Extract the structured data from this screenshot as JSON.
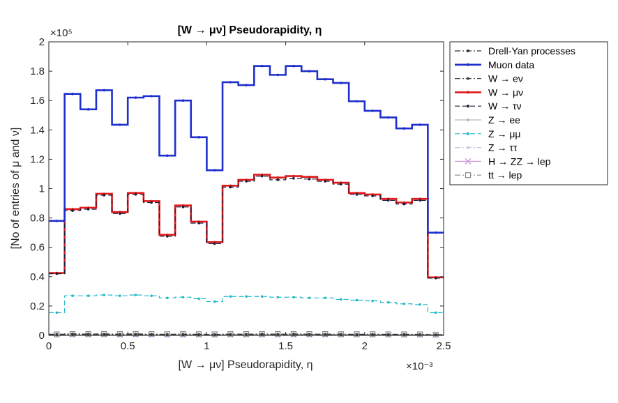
{
  "chart_data": {
    "type": "step",
    "title": "[W → μν] Pseudorapidity, η",
    "xlabel": "[W → μν] Pseudorapidity, η",
    "ylabel": "[No of entries of μ and ν]",
    "x_exponent_label": "×10⁻³",
    "y_exponent_label": "×10⁵",
    "xlim": [
      0,
      2.5
    ],
    "ylim": [
      0,
      200000
    ],
    "xticks": [
      0,
      0.5,
      1,
      1.5,
      2,
      2.5
    ],
    "xtick_labels": [
      "0",
      "0.5",
      "1",
      "1.5",
      "2",
      "2.5"
    ],
    "yticks": [
      0,
      20000,
      40000,
      60000,
      80000,
      100000,
      120000,
      140000,
      160000,
      180000,
      200000
    ],
    "ytick_labels": [
      "0",
      "0.2",
      "0.4",
      "0.6",
      "0.8",
      "1",
      "1.2",
      "1.4",
      "1.6",
      "1.8",
      "2"
    ],
    "grid": false,
    "legend_position": "outside-right",
    "x": [
      0.05,
      0.15,
      0.25,
      0.35,
      0.45,
      0.55,
      0.65,
      0.75,
      0.85,
      0.95,
      1.05,
      1.15,
      1.25,
      1.35,
      1.45,
      1.55,
      1.65,
      1.75,
      1.85,
      1.95,
      2.05,
      2.15,
      2.25,
      2.35,
      2.45
    ],
    "series": [
      {
        "name": "Drell-Yan processes",
        "color": "#333333",
        "style": "dashdot",
        "marker": "dot",
        "values": [
          800,
          1000,
          900,
          900,
          800,
          900,
          800,
          700,
          800,
          700,
          600,
          800,
          800,
          900,
          800,
          900,
          800,
          800,
          800,
          700,
          700,
          700,
          700,
          600,
          500
        ]
      },
      {
        "name": "Muon data",
        "color": "#1f2fcc",
        "style": "solid-thick",
        "marker": "dot",
        "values": [
          78000,
          164500,
          154000,
          167000,
          143500,
          162000,
          163000,
          122500,
          160000,
          135000,
          112500,
          172500,
          170500,
          183500,
          177500,
          183500,
          180000,
          174500,
          172000,
          159500,
          153000,
          148500,
          141000,
          143500,
          70000
        ]
      },
      {
        "name": "W → eν",
        "color": "#444444",
        "style": "dashdot",
        "marker": "dot",
        "values": [
          300,
          400,
          400,
          400,
          300,
          400,
          400,
          300,
          300,
          300,
          300,
          400,
          400,
          400,
          400,
          400,
          400,
          400,
          300,
          300,
          300,
          300,
          300,
          300,
          200
        ]
      },
      {
        "name": "W → μν",
        "color": "#e01818",
        "style": "solid-thick",
        "marker": "dot",
        "values": [
          42500,
          86000,
          87000,
          96500,
          84000,
          97000,
          91500,
          68500,
          88500,
          77500,
          63500,
          102000,
          106000,
          109500,
          107500,
          108500,
          108000,
          106000,
          104000,
          97000,
          96000,
          93000,
          90500,
          93000,
          39500
        ]
      },
      {
        "name": "W → τν",
        "color": "#1a1a3a",
        "style": "dashed",
        "marker": "dot",
        "values": [
          42000,
          85000,
          86000,
          95500,
          83000,
          96000,
          90500,
          67500,
          87500,
          76500,
          62500,
          101000,
          105000,
          108500,
          106000,
          107000,
          106500,
          105000,
          103000,
          96000,
          95000,
          92000,
          89500,
          92000,
          39000
        ]
      },
      {
        "name": "Z → ee",
        "color": "#b8b8b8",
        "style": "solid",
        "marker": "dot",
        "values": [
          200,
          300,
          300,
          300,
          300,
          300,
          300,
          200,
          300,
          200,
          200,
          300,
          300,
          300,
          300,
          300,
          300,
          300,
          300,
          300,
          200,
          200,
          200,
          200,
          200
        ]
      },
      {
        "name": "Z → μμ",
        "color": "#22b8c8",
        "style": "dashed",
        "marker": "dot",
        "values": [
          15500,
          27000,
          27000,
          27500,
          27000,
          27500,
          27000,
          25500,
          26000,
          25000,
          23000,
          26500,
          26500,
          26500,
          26000,
          26000,
          25500,
          25500,
          24500,
          24000,
          23500,
          22500,
          21500,
          21000,
          15500
        ]
      },
      {
        "name": "Z → ττ",
        "color": "#cfc3e3",
        "style": "dashdot",
        "marker": "dot",
        "values": [
          100,
          200,
          200,
          200,
          200,
          200,
          200,
          100,
          200,
          100,
          100,
          200,
          200,
          200,
          200,
          200,
          200,
          200,
          200,
          200,
          100,
          100,
          100,
          100,
          100
        ]
      },
      {
        "name": "H → ZZ → lep",
        "color": "#cc99dd",
        "style": "solid",
        "marker": "x",
        "values": [
          0,
          0,
          0,
          0,
          0,
          0,
          0,
          0,
          0,
          0,
          0,
          0,
          0,
          0,
          0,
          0,
          0,
          0,
          0,
          0,
          0,
          0,
          0,
          0,
          0
        ]
      },
      {
        "name": "tt → lep",
        "color": "#8a8a8a",
        "style": "dashdot",
        "marker": "square",
        "values": [
          700,
          900,
          900,
          1000,
          900,
          1000,
          900,
          800,
          900,
          800,
          700,
          900,
          900,
          900,
          900,
          900,
          900,
          900,
          800,
          800,
          800,
          700,
          700,
          700,
          500
        ]
      }
    ]
  }
}
